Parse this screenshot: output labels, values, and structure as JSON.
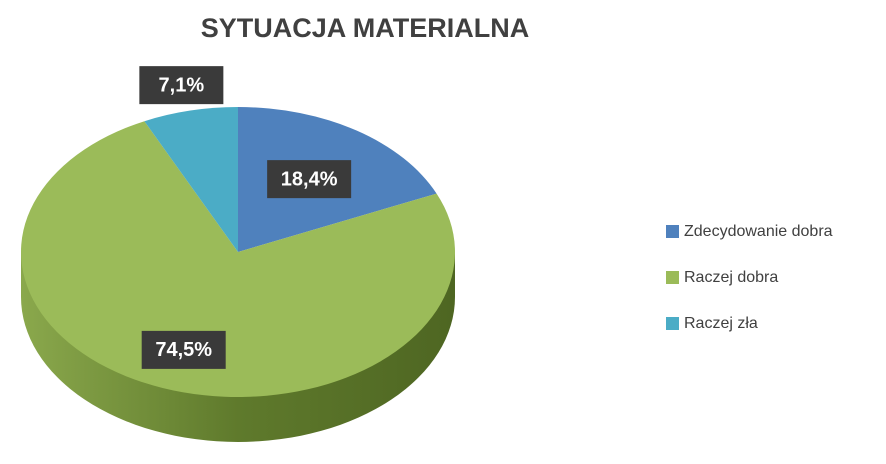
{
  "chart_data": {
    "type": "pie",
    "title": "SYTUACJA MATERIALNA",
    "categories": [
      "Zdecydowanie dobra",
      "Raczej dobra",
      "Raczej zła"
    ],
    "values": [
      18.4,
      74.5,
      7.1
    ],
    "value_labels": [
      "18,4%",
      "74,5%",
      "7,1%"
    ],
    "colors": [
      "#4f81bd",
      "#9bbb59",
      "#4bacc6"
    ],
    "legend": "right"
  }
}
